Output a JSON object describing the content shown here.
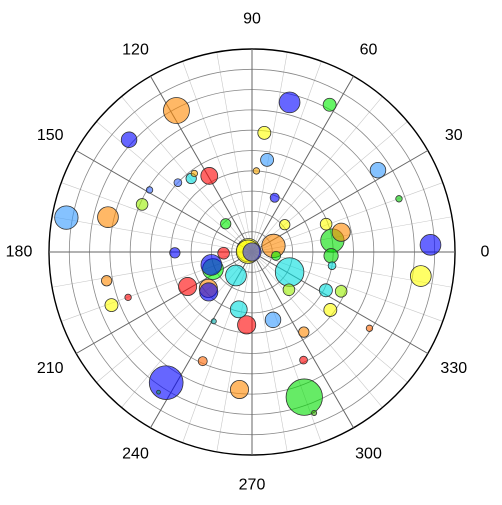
{
  "chart_data": {
    "type": "scatter",
    "subtype": "polar-bubble",
    "title": "",
    "angle_unit": "degrees",
    "angle_direction": "counterclockwise",
    "angle_zero": "east",
    "angle_ticks": [
      0,
      30,
      60,
      90,
      120,
      150,
      180,
      210,
      240,
      270,
      300,
      330
    ],
    "angle_tick_labels": [
      "0",
      "30",
      "60",
      "90",
      "120",
      "150",
      "180",
      "210",
      "240",
      "270",
      "300",
      "330"
    ],
    "minor_angle_step": 10,
    "radial_range": [
      0,
      10
    ],
    "radial_rings": [
      1,
      2,
      3,
      4,
      5,
      6,
      7,
      8,
      9,
      10
    ],
    "radial_tick_labels_shown": false,
    "grid": true,
    "legend": "none",
    "marker_opacity": 0.6,
    "bubble_size_unit": "relative",
    "points": [
      {
        "angle": 0.0,
        "r": 0.0,
        "size": 1.4,
        "color": "#3333ff"
      },
      {
        "angle": 2.3,
        "r": 8.8,
        "size": 1.6,
        "color": "#0000ff"
      },
      {
        "angle": 351.9,
        "r": 8.4,
        "size": 1.6,
        "color": "#ffff00"
      },
      {
        "angle": 19.9,
        "r": 7.7,
        "size": 0.5,
        "color": "#00cc00"
      },
      {
        "angle": 33.0,
        "r": 7.4,
        "size": 1.2,
        "color": "#3399ff"
      },
      {
        "angle": 62.2,
        "r": 8.2,
        "size": 1.0,
        "color": "#00ee00"
      },
      {
        "angle": 75.9,
        "r": 7.6,
        "size": 1.6,
        "color": "#0000ff"
      },
      {
        "angle": 84.1,
        "r": 5.9,
        "size": 1.0,
        "color": "#ffff00"
      },
      {
        "angle": 80.7,
        "r": 4.6,
        "size": 1.0,
        "color": "#3399ff"
      },
      {
        "angle": 86.9,
        "r": 4.0,
        "size": 0.5,
        "color": "#ffaa00"
      },
      {
        "angle": 67.3,
        "r": 2.9,
        "size": 0.7,
        "color": "#0000ff"
      },
      {
        "angle": 39.8,
        "r": 2.1,
        "size": 0.8,
        "color": "#ffff00"
      },
      {
        "angle": 20.6,
        "r": 3.9,
        "size": 0.9,
        "color": "#ffff00"
      },
      {
        "angle": 12.5,
        "r": 4.5,
        "size": 1.4,
        "color": "#ff8800"
      },
      {
        "angle": 8.1,
        "r": 4.0,
        "size": 1.8,
        "color": "#00dd00"
      },
      {
        "angle": 357.3,
        "r": 3.9,
        "size": 1.1,
        "color": "#00dd00"
      },
      {
        "angle": 350.3,
        "r": 4.0,
        "size": 0.6,
        "color": "#00dddd"
      },
      {
        "angle": 15.9,
        "r": 1.1,
        "size": 1.8,
        "color": "#ff8800"
      },
      {
        "angle": 351.1,
        "r": 1.2,
        "size": 0.7,
        "color": "#00ee00"
      },
      {
        "angle": 153.6,
        "r": 0.2,
        "size": 1.8,
        "color": "#ffff00"
      },
      {
        "angle": 175.9,
        "r": 0.2,
        "size": 1.8,
        "color": "#ffff00"
      },
      {
        "angle": 332.6,
        "r": 4.1,
        "size": 1.0,
        "color": "#00dddd"
      },
      {
        "angle": 323.5,
        "r": 4.8,
        "size": 1.0,
        "color": "#ffff00"
      },
      {
        "angle": 327.0,
        "r": 6.9,
        "size": 0.5,
        "color": "#ff6600"
      },
      {
        "angle": 336.2,
        "r": 4.8,
        "size": 0.9,
        "color": "#99ee00"
      },
      {
        "angle": 302.9,
        "r": 4.7,
        "size": 0.8,
        "color": "#ff8800"
      },
      {
        "angle": 295.5,
        "r": 5.9,
        "size": 0.6,
        "color": "#ff0000"
      },
      {
        "angle": 289.8,
        "r": 7.6,
        "size": 2.8,
        "color": "#00dd00"
      },
      {
        "angle": 291.1,
        "r": 8.5,
        "size": 0.4,
        "color": "#33aa00"
      },
      {
        "angle": 331.9,
        "r": 2.1,
        "size": 2.2,
        "color": "#00dddd"
      },
      {
        "angle": 314.4,
        "r": 2.6,
        "size": 0.9,
        "color": "#99ee00"
      },
      {
        "angle": 287.2,
        "r": 3.5,
        "size": 1.2,
        "color": "#3399ff"
      },
      {
        "angle": 265.8,
        "r": 3.6,
        "size": 1.4,
        "color": "#ff0000"
      },
      {
        "angle": 257.0,
        "r": 2.9,
        "size": 1.3,
        "color": "#00dddd"
      },
      {
        "angle": 241.1,
        "r": 3.9,
        "size": 0.4,
        "color": "#00aaaa"
      },
      {
        "angle": 245.7,
        "r": 5.9,
        "size": 0.7,
        "color": "#ff6600"
      },
      {
        "angle": 236.7,
        "r": 7.7,
        "size": 2.6,
        "color": "#0000ff"
      },
      {
        "angle": 264.8,
        "r": 6.8,
        "size": 1.4,
        "color": "#ff8800"
      },
      {
        "angle": 236.3,
        "r": 8.3,
        "size": 0.3,
        "color": "#009966"
      },
      {
        "angle": 235.7,
        "r": 1.4,
        "size": 1.6,
        "color": "#00dddd"
      },
      {
        "angle": 219.8,
        "r": 2.8,
        "size": 1.4,
        "color": "#ff8800"
      },
      {
        "angle": 222.7,
        "r": 2.9,
        "size": 1.4,
        "color": "#0000ff"
      },
      {
        "angle": 203.6,
        "r": 2.1,
        "size": 1.6,
        "color": "#00ff00"
      },
      {
        "angle": 197.6,
        "r": 2.1,
        "size": 1.6,
        "color": "#0000ff"
      },
      {
        "angle": 208.2,
        "r": 3.6,
        "size": 1.4,
        "color": "#ff0000"
      },
      {
        "angle": 200.1,
        "r": 6.5,
        "size": 0.5,
        "color": "#ff0000"
      },
      {
        "angle": 191.2,
        "r": 7.3,
        "size": 0.8,
        "color": "#ff8800"
      },
      {
        "angle": 200.7,
        "r": 7.4,
        "size": 1.0,
        "color": "#ffff00"
      },
      {
        "angle": 180.6,
        "r": 3.8,
        "size": 0.8,
        "color": "#0000ff"
      },
      {
        "angle": 182.4,
        "r": 1.4,
        "size": 0.9,
        "color": "#ff0000"
      },
      {
        "angle": 133.0,
        "r": 1.9,
        "size": 0.8,
        "color": "#00ee00"
      },
      {
        "angle": 119.3,
        "r": 4.3,
        "size": 1.3,
        "color": "#ff0000"
      },
      {
        "angle": 129.6,
        "r": 4.7,
        "size": 0.8,
        "color": "#00dddd"
      },
      {
        "angle": 136.9,
        "r": 5.0,
        "size": 0.6,
        "color": "#3366ff"
      },
      {
        "angle": 126.3,
        "r": 4.8,
        "size": 0.5,
        "color": "#ffaa00"
      },
      {
        "angle": 148.8,
        "r": 5.9,
        "size": 0.5,
        "color": "#3366ff"
      },
      {
        "angle": 156.6,
        "r": 5.9,
        "size": 0.9,
        "color": "#99ee00"
      },
      {
        "angle": 166.4,
        "r": 7.3,
        "size": 1.6,
        "color": "#ff8800"
      },
      {
        "angle": 169.5,
        "r": 9.3,
        "size": 1.8,
        "color": "#3399ff"
      },
      {
        "angle": 137.6,
        "r": 8.2,
        "size": 1.2,
        "color": "#0000ff"
      },
      {
        "angle": 118.1,
        "r": 7.9,
        "size": 2.0,
        "color": "#ff8800"
      }
    ]
  }
}
